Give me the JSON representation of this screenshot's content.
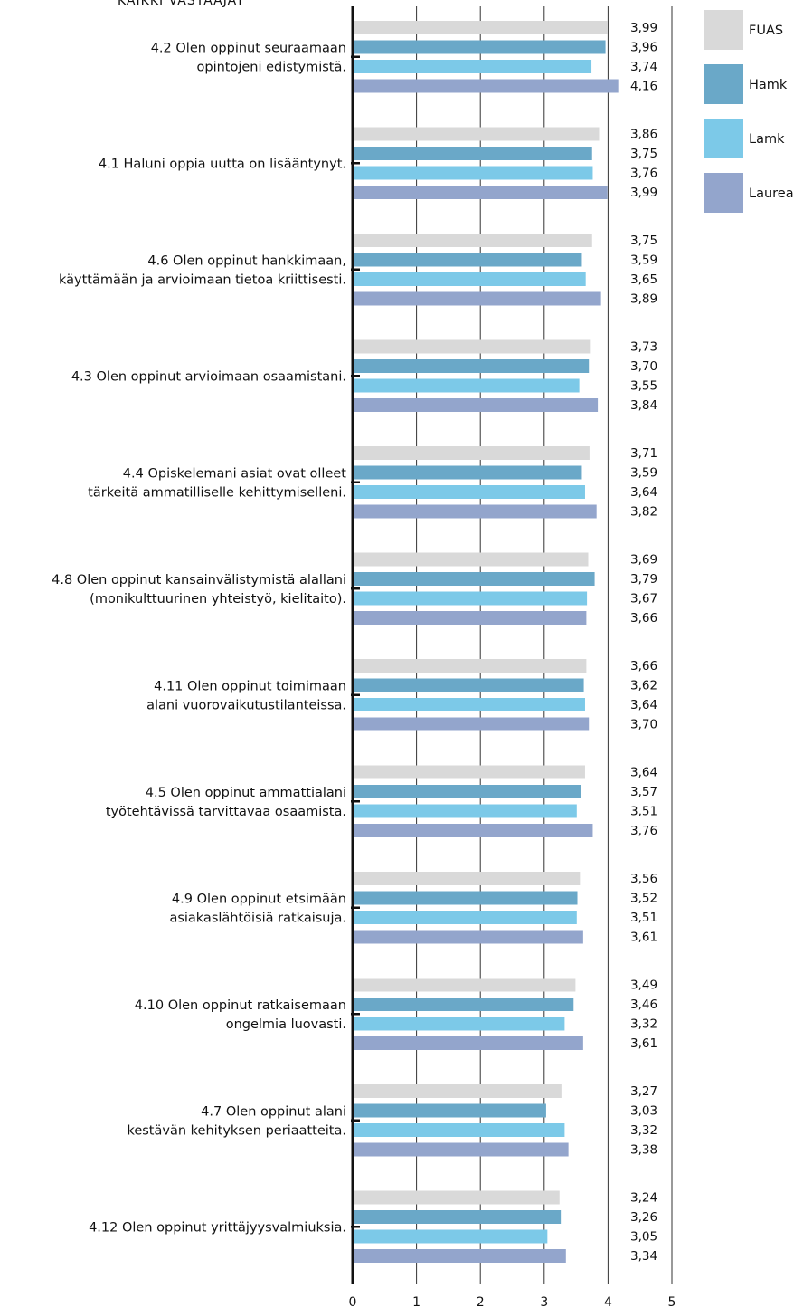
{
  "chart_data": {
    "type": "bar",
    "orientation": "horizontal",
    "title_partial": "KAIKKI VASTAAJAT",
    "xlim": [
      0,
      5
    ],
    "x_ticks": [
      "0",
      "1",
      "2",
      "3",
      "4",
      "5"
    ],
    "grid": "vertical",
    "legend_position": "right",
    "series": [
      {
        "name": "FUAS",
        "color": "#d9d9d9"
      },
      {
        "name": "Hamk",
        "color": "#6aa8c8"
      },
      {
        "name": "Lamk",
        "color": "#7cc9e8"
      },
      {
        "name": "Laurea",
        "color": "#93a5cc"
      }
    ],
    "categories": [
      {
        "lines": [
          "4.2 Olen oppinut seuraamaan",
          "opintojeni edistymistä."
        ],
        "values": [
          3.99,
          3.96,
          3.74,
          4.16
        ],
        "labels": [
          "3,99",
          "3,96",
          "3,74",
          "4,16"
        ]
      },
      {
        "lines": [
          "4.1 Haluni oppia uutta on lisääntynyt."
        ],
        "values": [
          3.86,
          3.75,
          3.76,
          3.99
        ],
        "labels": [
          "3,86",
          "3,75",
          "3,76",
          "3,99"
        ]
      },
      {
        "lines": [
          "4.6 Olen oppinut hankkimaan,",
          "käyttämään ja arvioimaan tietoa kriittisesti."
        ],
        "values": [
          3.75,
          3.59,
          3.65,
          3.89
        ],
        "labels": [
          "3,75",
          "3,59",
          "3,65",
          "3,89"
        ]
      },
      {
        "lines": [
          "4.3 Olen oppinut arvioimaan osaamistani."
        ],
        "values": [
          3.73,
          3.7,
          3.55,
          3.84
        ],
        "labels": [
          "3,73",
          "3,70",
          "3,55",
          "3,84"
        ]
      },
      {
        "lines": [
          "4.4 Opiskelemani asiat ovat olleet",
          "tärkeitä ammatilliselle kehittymiselleni."
        ],
        "values": [
          3.71,
          3.59,
          3.64,
          3.82
        ],
        "labels": [
          "3,71",
          "3,59",
          "3,64",
          "3,82"
        ]
      },
      {
        "lines": [
          "4.8 Olen oppinut kansainvälistymistä alallani",
          "(monikulttuurinen yhteistyö, kielitaito)."
        ],
        "values": [
          3.69,
          3.79,
          3.67,
          3.66
        ],
        "labels": [
          "3,69",
          "3,79",
          "3,67",
          "3,66"
        ]
      },
      {
        "lines": [
          "4.11 Olen oppinut toimimaan",
          "alani vuorovaikutustilanteissa."
        ],
        "values": [
          3.66,
          3.62,
          3.64,
          3.7
        ],
        "labels": [
          "3,66",
          "3,62",
          "3,64",
          "3,70"
        ]
      },
      {
        "lines": [
          "4.5 Olen oppinut ammattialani",
          "työtehtävissä tarvittavaa osaamista."
        ],
        "values": [
          3.64,
          3.57,
          3.51,
          3.76
        ],
        "labels": [
          "3,64",
          "3,57",
          "3,51",
          "3,76"
        ]
      },
      {
        "lines": [
          "4.9 Olen oppinut etsimään",
          "asiakaslähtöisiä ratkaisuja."
        ],
        "values": [
          3.56,
          3.52,
          3.51,
          3.61
        ],
        "labels": [
          "3,56",
          "3,52",
          "3,51",
          "3,61"
        ]
      },
      {
        "lines": [
          "4.10 Olen oppinut ratkaisemaan",
          "ongelmia luovasti."
        ],
        "values": [
          3.49,
          3.46,
          3.32,
          3.61
        ],
        "labels": [
          "3,49",
          "3,46",
          "3,32",
          "3,61"
        ]
      },
      {
        "lines": [
          "4.7 Olen oppinut alani",
          "kestävän kehityksen periaatteita."
        ],
        "values": [
          3.27,
          3.03,
          3.32,
          3.38
        ],
        "labels": [
          "3,27",
          "3,03",
          "3,32",
          "3,38"
        ]
      },
      {
        "lines": [
          "4.12 Olen oppinut yrittäjyysvalmiuksia."
        ],
        "values": [
          3.24,
          3.26,
          3.05,
          3.34
        ],
        "labels": [
          "3,24",
          "3,26",
          "3,05",
          "3,34"
        ]
      }
    ]
  }
}
